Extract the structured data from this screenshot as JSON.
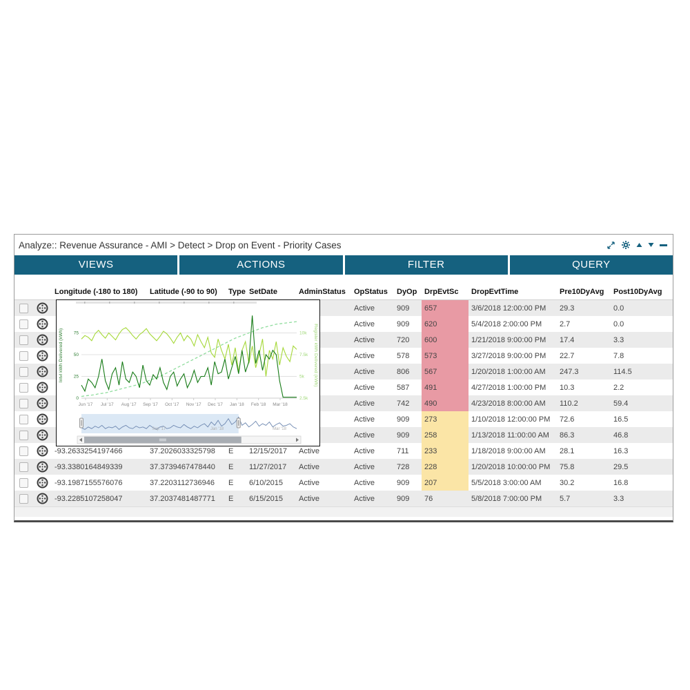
{
  "window": {
    "title": "Analyze:: Revenue Assurance - AMI > Detect > Drop on Event - Priority Cases",
    "titlebar_icons": [
      "expand-icon",
      "gear-icon",
      "triangle-up-icon",
      "triangle-down-icon",
      "minimize-icon"
    ]
  },
  "tabs": [
    {
      "label": "VIEWS"
    },
    {
      "label": "ACTIONS"
    },
    {
      "label": "FILTER"
    },
    {
      "label": "QUERY"
    }
  ],
  "colors": {
    "accent_teal": "#15617f",
    "row_alt": "#ebebeb",
    "score_high_bg": "#e89aa4",
    "score_mid_bg": "#fbe5a6",
    "chart_dark_green": "#157a15",
    "chart_light_green": "#a5d838",
    "chart_dashed_green": "#8edc9c",
    "navigator_line_blue": "#6d87b0",
    "navigator_fill_blue": "#cfe0f2"
  },
  "table": {
    "columns": [
      {
        "key": "checkbox",
        "label": ""
      },
      {
        "key": "icon",
        "label": ""
      },
      {
        "key": "longitude",
        "label": "Longitude (-180 to 180)"
      },
      {
        "key": "latitude",
        "label": "Latitude (-90 to 90)"
      },
      {
        "key": "type",
        "label": "Type"
      },
      {
        "key": "set_date",
        "label": "SetDate"
      },
      {
        "key": "admin_status",
        "label": "AdminStatus"
      },
      {
        "key": "op_status",
        "label": "OpStatus"
      },
      {
        "key": "dy_op",
        "label": "DyOp"
      },
      {
        "key": "drp_evt_sc",
        "label": "DrpEvtSc"
      },
      {
        "key": "drop_evt_time",
        "label": "DropEvtTime"
      },
      {
        "key": "pre10dyavg",
        "label": "Pre10DyAvg"
      },
      {
        "key": "post10dyavg",
        "label": "Post10DyAvg"
      }
    ],
    "rows": [
      {
        "longitude": "",
        "latitude": "",
        "type": "",
        "set_date": "",
        "admin_status": "",
        "op_status": "Active",
        "dy_op": "909",
        "drp_evt_sc": "657",
        "drp_evt_sc_level": "high",
        "drop_evt_time": "3/6/2018 12:00:00 PM",
        "pre10dyavg": "29.3",
        "post10dyavg": "0.0"
      },
      {
        "longitude": "",
        "latitude": "",
        "type": "",
        "set_date": "",
        "admin_status": "",
        "op_status": "Active",
        "dy_op": "909",
        "drp_evt_sc": "620",
        "drp_evt_sc_level": "high",
        "drop_evt_time": "5/4/2018 2:00:00 PM",
        "pre10dyavg": "2.7",
        "post10dyavg": "0.0"
      },
      {
        "longitude": "",
        "latitude": "",
        "type": "",
        "set_date": "",
        "admin_status": "",
        "op_status": "Active",
        "dy_op": "720",
        "drp_evt_sc": "600",
        "drp_evt_sc_level": "high",
        "drop_evt_time": "1/21/2018 9:00:00 PM",
        "pre10dyavg": "17.4",
        "post10dyavg": "3.3"
      },
      {
        "longitude": "",
        "latitude": "",
        "type": "",
        "set_date": "",
        "admin_status": "",
        "op_status": "Active",
        "dy_op": "578",
        "drp_evt_sc": "573",
        "drp_evt_sc_level": "high",
        "drop_evt_time": "3/27/2018 9:00:00 PM",
        "pre10dyavg": "22.7",
        "post10dyavg": "7.8"
      },
      {
        "longitude": "",
        "latitude": "",
        "type": "",
        "set_date": "",
        "admin_status": "",
        "op_status": "Active",
        "dy_op": "806",
        "drp_evt_sc": "567",
        "drp_evt_sc_level": "high",
        "drop_evt_time": "1/20/2018 1:00:00 AM",
        "pre10dyavg": "247.3",
        "post10dyavg": "114.5"
      },
      {
        "longitude": "",
        "latitude": "",
        "type": "",
        "set_date": "",
        "admin_status": "",
        "op_status": "Active",
        "dy_op": "587",
        "drp_evt_sc": "491",
        "drp_evt_sc_level": "high",
        "drop_evt_time": "4/27/2018 1:00:00 PM",
        "pre10dyavg": "10.3",
        "post10dyavg": "2.2"
      },
      {
        "longitude": "",
        "latitude": "",
        "type": "",
        "set_date": "",
        "admin_status": "",
        "op_status": "Active",
        "dy_op": "742",
        "drp_evt_sc": "490",
        "drp_evt_sc_level": "high",
        "drop_evt_time": "4/23/2018 8:00:00 AM",
        "pre10dyavg": "110.2",
        "post10dyavg": "59.4"
      },
      {
        "longitude": "",
        "latitude": "",
        "type": "",
        "set_date": "",
        "admin_status": "",
        "op_status": "Active",
        "dy_op": "909",
        "drp_evt_sc": "273",
        "drp_evt_sc_level": "mid",
        "drop_evt_time": "1/10/2018 12:00:00 PM",
        "pre10dyavg": "72.6",
        "post10dyavg": "16.5"
      },
      {
        "longitude": "",
        "latitude": "",
        "type": "",
        "set_date": "",
        "admin_status": "",
        "op_status": "Active",
        "dy_op": "909",
        "drp_evt_sc": "258",
        "drp_evt_sc_level": "mid",
        "drop_evt_time": "1/13/2018 11:00:00 AM",
        "pre10dyavg": "86.3",
        "post10dyavg": "46.8"
      },
      {
        "longitude": "-93.2633254197466",
        "latitude": "37.2026033325798",
        "type": "E",
        "set_date": "12/15/2017",
        "admin_status": "Active",
        "op_status": "Active",
        "dy_op": "711",
        "drp_evt_sc": "233",
        "drp_evt_sc_level": "mid",
        "drop_evt_time": "1/18/2018 9:00:00 AM",
        "pre10dyavg": "28.1",
        "post10dyavg": "16.3"
      },
      {
        "longitude": "-93.3380164849339",
        "latitude": "37.3739467478440",
        "type": "E",
        "set_date": "11/27/2017",
        "admin_status": "Active",
        "op_status": "Active",
        "dy_op": "728",
        "drp_evt_sc": "228",
        "drp_evt_sc_level": "mid",
        "drop_evt_time": "1/20/2018 10:00:00 PM",
        "pre10dyavg": "75.8",
        "post10dyavg": "29.5"
      },
      {
        "longitude": "-93.1987155576076",
        "latitude": "37.2203112736946",
        "type": "E",
        "set_date": "6/10/2015",
        "admin_status": "Active",
        "op_status": "Active",
        "dy_op": "909",
        "drp_evt_sc": "207",
        "drp_evt_sc_level": "mid",
        "drop_evt_time": "5/5/2018 3:00:00 AM",
        "pre10dyavg": "30.2",
        "post10dyavg": "16.8"
      },
      {
        "longitude": "-93.2285107258047",
        "latitude": "37.2037481487771",
        "type": "E",
        "set_date": "6/15/2015",
        "admin_status": "Active",
        "op_status": "Active",
        "dy_op": "909",
        "drp_evt_sc": "76",
        "drp_evt_sc_level": "none",
        "drop_evt_time": "5/8/2018 7:00:00 PM",
        "pre10dyavg": "5.7",
        "post10dyavg": "3.3"
      }
    ]
  },
  "chart_data": {
    "type": "line",
    "title": "",
    "grid": true,
    "legend_position": "none",
    "left_axis": {
      "label": "Intvl kWh Delivered (kWh)",
      "ticks": [
        0,
        25,
        50,
        75
      ],
      "range": [
        0,
        100
      ]
    },
    "right_axis": {
      "label": "Register kWh Delivered (kWh)",
      "ticks": [
        "2.5k",
        "5k",
        "7.5k",
        "10k"
      ],
      "range": [
        2500,
        12500
      ]
    },
    "x_ticks": [
      "Jun '17",
      "Jul '17",
      "Aug '17",
      "Sep '17",
      "Oct '17",
      "Nov '17",
      "Dec '17",
      "Jan '18",
      "Feb '18",
      "Mar '18"
    ],
    "series": [
      {
        "name": "register-kwh-cumulative",
        "axis": "right",
        "style": "dashed",
        "color": "#8edc9c",
        "values": [
          2.7,
          2.75,
          2.8,
          2.85,
          2.9,
          3.0,
          3.05,
          3.1,
          3.2,
          3.3,
          3.4,
          3.5,
          3.6,
          3.7,
          3.8,
          3.9,
          4.0,
          4.1,
          4.25,
          4.4,
          4.55,
          4.7,
          4.85,
          5.0,
          5.2,
          5.4,
          5.6,
          5.8,
          6.0,
          6.2,
          6.4,
          6.6,
          6.8,
          7.0,
          7.2,
          7.4,
          7.6,
          7.8,
          8.0,
          8.2,
          8.4,
          8.6,
          8.8,
          9.0,
          9.2,
          9.4,
          9.55,
          9.7,
          9.85,
          10.0,
          10.15,
          10.3,
          10.45,
          10.6,
          10.7,
          10.8,
          10.9,
          11.0,
          11.05,
          11.1,
          11.15,
          11.2,
          11.25,
          11.3
        ]
      },
      {
        "name": "secondary-interval-kwh",
        "axis": "left",
        "style": "solid",
        "color": "#a5d838",
        "values": [
          68,
          72,
          70,
          66,
          74,
          78,
          73,
          69,
          75,
          71,
          67,
          74,
          79,
          81,
          77,
          72,
          68,
          73,
          76,
          80,
          74,
          70,
          66,
          71,
          77,
          74,
          69,
          63,
          70,
          75,
          66,
          72,
          68,
          60,
          73,
          65,
          58,
          70,
          52,
          47,
          68,
          55,
          45,
          62,
          38,
          58,
          30,
          55,
          65,
          40,
          60,
          35,
          50,
          68,
          25,
          55,
          45,
          65,
          38,
          58,
          48,
          42,
          60,
          56
        ]
      },
      {
        "name": "intvl-kwh-daily",
        "axis": "left",
        "style": "solid",
        "color": "#157a15",
        "values": [
          15,
          8,
          22,
          18,
          12,
          25,
          45,
          20,
          10,
          28,
          35,
          15,
          42,
          22,
          18,
          30,
          25,
          12,
          38,
          20,
          15,
          27,
          22,
          35,
          18,
          10,
          25,
          30,
          14,
          22,
          28,
          12,
          20,
          32,
          18,
          25,
          25,
          35,
          15,
          42,
          28,
          30,
          45,
          22,
          35,
          48,
          28,
          55,
          30,
          42,
          95,
          40,
          55,
          32,
          50,
          45,
          55,
          50,
          20,
          1,
          1,
          1,
          1,
          1
        ]
      }
    ],
    "navigator": {
      "selection": [
        0.0,
        0.73
      ],
      "labels": [
        {
          "text": "Sep '17",
          "pos": 0.36
        },
        {
          "text": "Jan '18",
          "pos": 0.63
        },
        {
          "text": "Mar '18",
          "pos": 0.92
        }
      ],
      "values": [
        5,
        3,
        6,
        4,
        7,
        5,
        8,
        4,
        6,
        5,
        7,
        3,
        6,
        8,
        5,
        4,
        7,
        5,
        6,
        4,
        8,
        5,
        3,
        6,
        7,
        4,
        5,
        8,
        6,
        5,
        9,
        6,
        4,
        7,
        5,
        8,
        10,
        6,
        12,
        8,
        14,
        7,
        10,
        16,
        9,
        12,
        18,
        8,
        11,
        6,
        9,
        13,
        7,
        10,
        8,
        12,
        6,
        9,
        11,
        7,
        8,
        10,
        6,
        4
      ]
    }
  }
}
